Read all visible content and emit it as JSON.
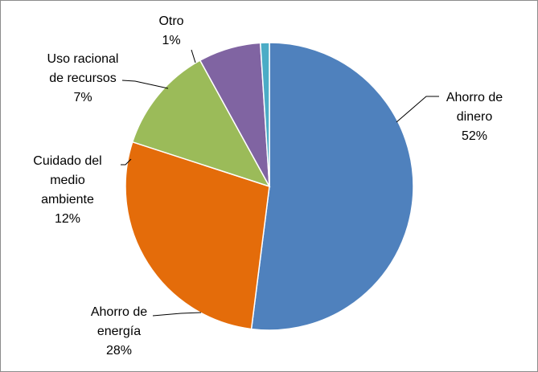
{
  "chart_data": {
    "type": "pie",
    "title": "",
    "start_angle_deg": 0,
    "direction": "clockwise",
    "legend": "none",
    "slices": [
      {
        "label": [
          "Ahorro de",
          "dinero"
        ],
        "value": 52,
        "value_label": "52%",
        "color": "#4f81bd"
      },
      {
        "label": [
          "Ahorro de",
          "energía"
        ],
        "value": 28,
        "value_label": "28%",
        "color": "#e46c0a"
      },
      {
        "label": [
          "Cuidado del",
          "medio",
          "ambiente"
        ],
        "value": 12,
        "value_label": "12%",
        "color": "#9bbb59"
      },
      {
        "label": [
          "Uso racional",
          "de recursos"
        ],
        "value": 7,
        "value_label": "7%",
        "color": "#8064a2"
      },
      {
        "label": [
          "Otro"
        ],
        "value": 1,
        "value_label": "1%",
        "color": "#4bacc6"
      }
    ]
  }
}
